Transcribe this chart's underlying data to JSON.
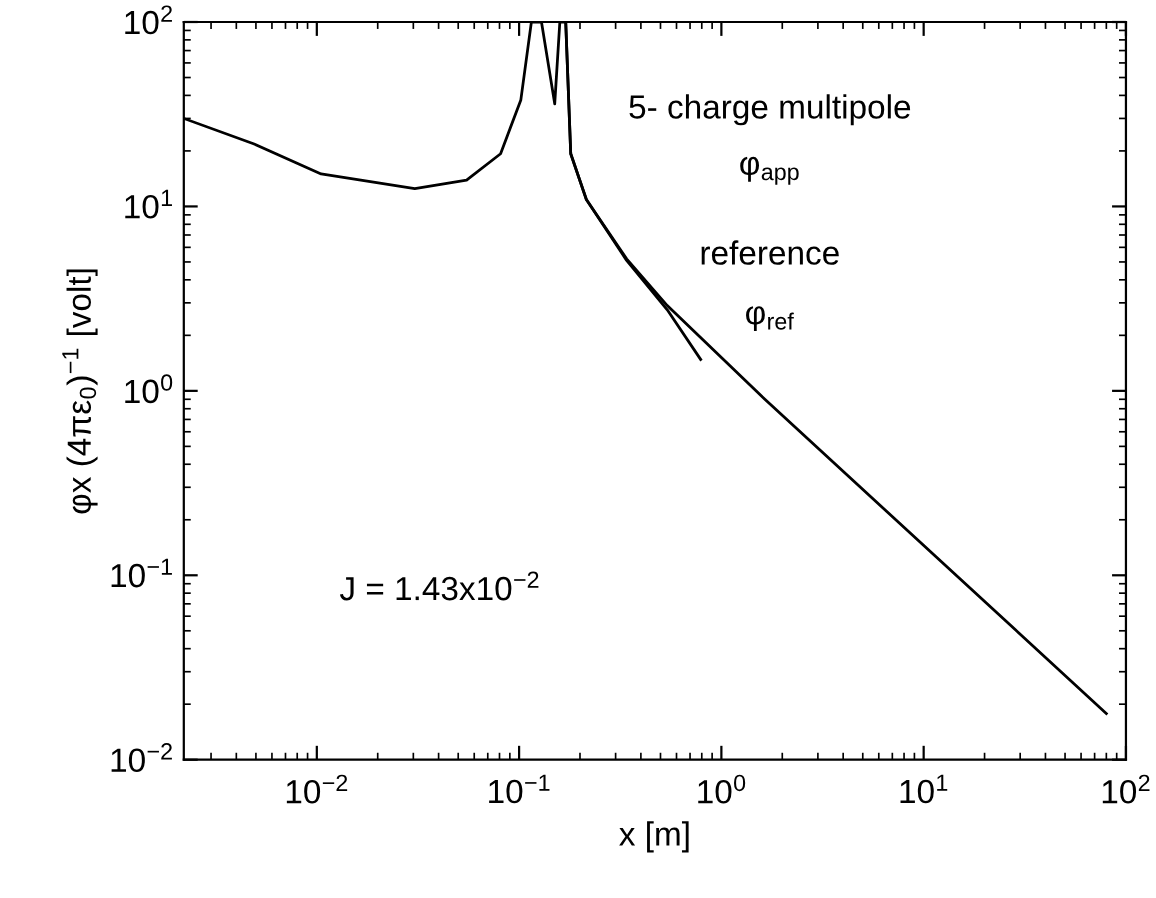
{
  "chart_data": {
    "type": "line",
    "xlabel": "x [m]",
    "ylabel": "φx (4πε$_{0}$)$^{−1}$ [volt]",
    "log": "xy",
    "xlim": [
      0.0022,
      100
    ],
    "ylim": [
      0.01,
      100
    ],
    "xticks": [
      {
        "value": 0.01,
        "label": "10$^{−2}$"
      },
      {
        "value": 0.1,
        "label": "10$^{−1}$"
      },
      {
        "value": 1,
        "label": "10$^{0}$"
      },
      {
        "value": 10,
        "label": "10$^{1}$"
      },
      {
        "value": 100,
        "label": "10$^{2}$"
      }
    ],
    "yticks": [
      {
        "value": 0.01,
        "label": "10$^{−2}$"
      },
      {
        "value": 0.1,
        "label": "10$^{−1}$"
      },
      {
        "value": 1,
        "label": "10$^{0}$"
      },
      {
        "value": 10,
        "label": "10$^{1}$"
      },
      {
        "value": 100,
        "label": "10$^{2}$"
      }
    ],
    "series": [
      {
        "color": "#000000",
        "x": [
          0.0022,
          0.0049,
          0.0105,
          0.0305,
          0.055,
          0.081,
          0.102,
          0.115,
          0.129,
          0.15,
          0.159,
          0.17,
          0.18,
          0.215,
          0.34,
          0.54,
          0.79
        ],
        "values": [
          30,
          21.8,
          15,
          12.5,
          13.9,
          19.3,
          37.8,
          100,
          100,
          36,
          100,
          100,
          19.3,
          10.9,
          5.1,
          2.75,
          1.48
        ]
      },
      {
        "color": "#000000",
        "x": [
          0.17,
          0.18,
          0.215,
          0.34,
          0.54,
          1.64,
          80
        ],
        "values": [
          100,
          19.3,
          10.9,
          5.2,
          2.9,
          0.9,
          0.0178
        ]
      }
    ],
    "annotations": [
      "5- charge multipole",
      "φ$_{app}$",
      "reference",
      "φ$_{ref}$",
      "J = 1.43x10$^{−2}$"
    ]
  }
}
